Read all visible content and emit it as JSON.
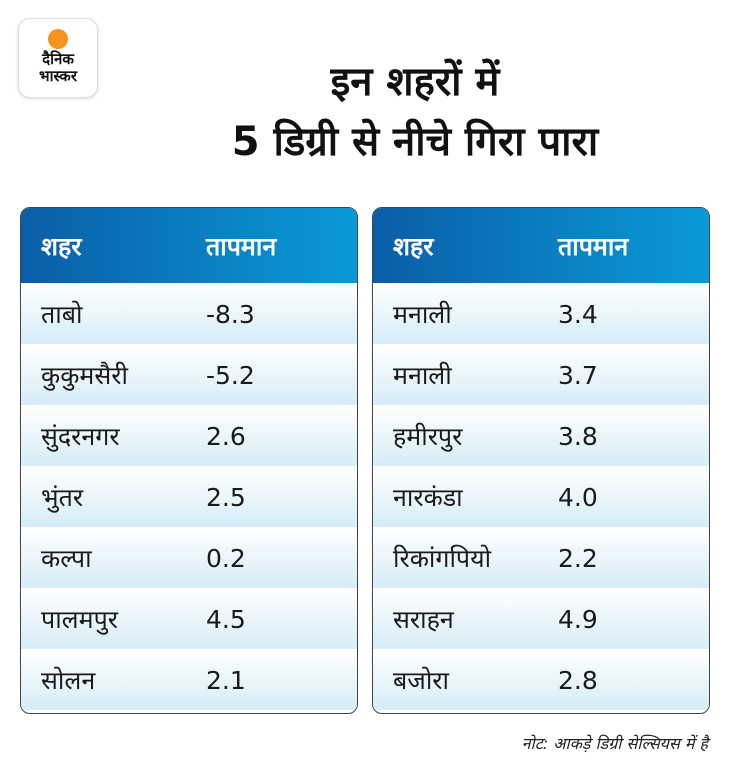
{
  "logo": {
    "line1": "दैनिक",
    "line2": "भास्कर",
    "sun_color": "#f7941d"
  },
  "title": {
    "line1": "इन शहरों में",
    "line2": "5 डिग्री से नीचे गिरा पारा"
  },
  "headers": {
    "city": "शहर",
    "temp": "तापमान"
  },
  "left_table": [
    {
      "city": "ताबो",
      "temp": "-8.3"
    },
    {
      "city": "कुकुमसैरी",
      "temp": "-5.2"
    },
    {
      "city": "सुंदरनगर",
      "temp": "2.6"
    },
    {
      "city": "भुंतर",
      "temp": "2.5"
    },
    {
      "city": "कल्पा",
      "temp": "0.2"
    },
    {
      "city": "पालमपुर",
      "temp": "4.5"
    },
    {
      "city": "सोलन",
      "temp": "2.1"
    }
  ],
  "right_table": [
    {
      "city": "मनाली",
      "temp": "3.4"
    },
    {
      "city": "मनाली",
      "temp": "3.7"
    },
    {
      "city": "हमीरपुर",
      "temp": "3.8"
    },
    {
      "city": "नारकंडा",
      "temp": "4.0"
    },
    {
      "city": "रिकांगपियो",
      "temp": "2.2"
    },
    {
      "city": "सराहन",
      "temp": "4.9"
    },
    {
      "city": "बजोरा",
      "temp": "2.8"
    }
  ],
  "note": "नोट: आकड़े डिग्री सेल्सियस में है",
  "colors": {
    "header_start": "#0a5ea8",
    "header_end": "#0a9ad8",
    "row_tint": "#d6ecf7"
  }
}
